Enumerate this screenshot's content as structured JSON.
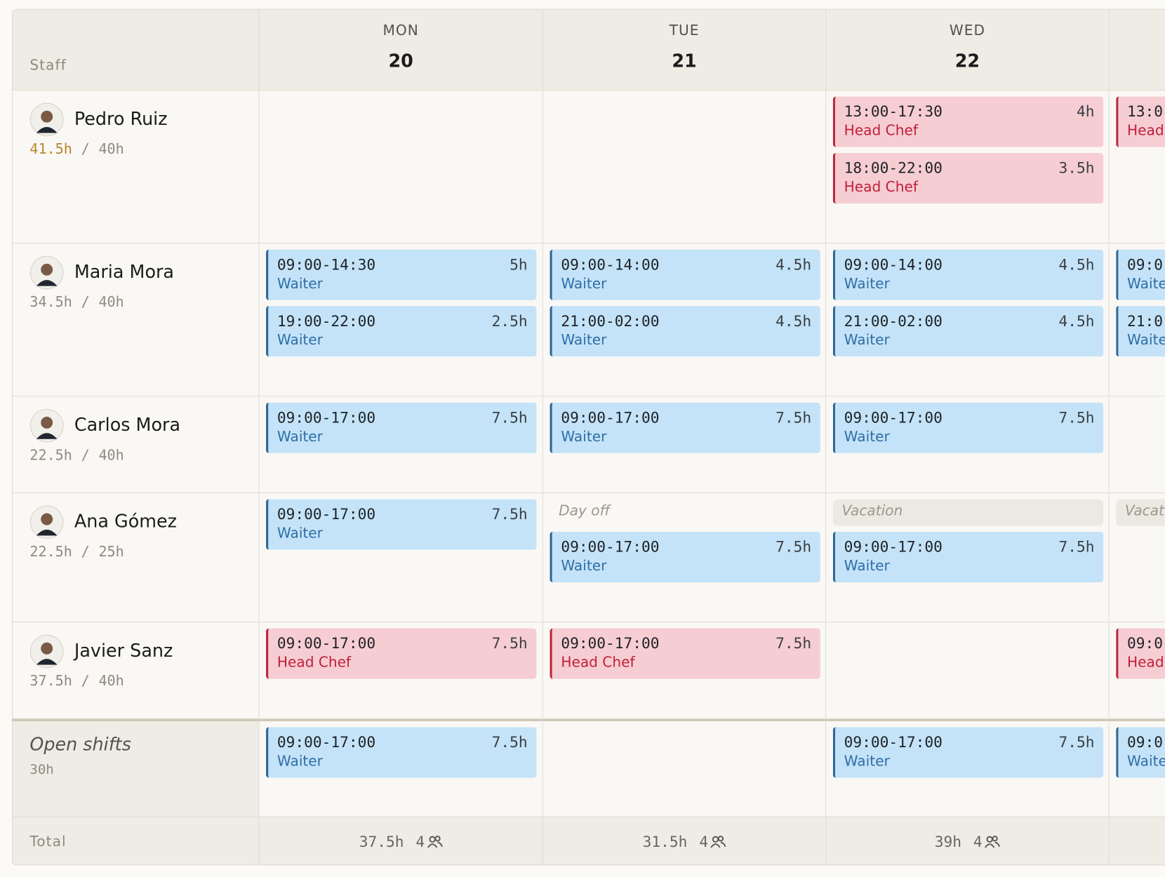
{
  "hours_separator": "/",
  "header": {
    "staff_label": "Staff",
    "days": [
      {
        "weekday": "MON",
        "date": "20"
      },
      {
        "weekday": "TUE",
        "date": "21"
      },
      {
        "weekday": "WED",
        "date": "22"
      },
      {}
    ]
  },
  "staff": [
    {
      "name": "Pedro Ruiz",
      "hours": "41.5h",
      "target": "40h",
      "over": true,
      "days": [
        [],
        [],
        [
          {
            "time": "13:00-17:30",
            "duration": "4h",
            "role": "Head Chef",
            "tone": "red"
          },
          {
            "time": "18:00-22:00",
            "duration": "3.5h",
            "role": "Head Chef",
            "tone": "red"
          }
        ],
        [
          {
            "time": "13:0",
            "role": "Head",
            "tone": "red"
          }
        ]
      ]
    },
    {
      "name": "Maria Mora",
      "hours": "34.5h",
      "target": "40h",
      "over": false,
      "days": [
        [
          {
            "time": "09:00-14:30",
            "duration": "5h",
            "role": "Waiter",
            "tone": "blue"
          },
          {
            "time": "19:00-22:00",
            "duration": "2.5h",
            "role": "Waiter",
            "tone": "blue"
          }
        ],
        [
          {
            "time": "09:00-14:00",
            "duration": "4.5h",
            "role": "Waiter",
            "tone": "blue"
          },
          {
            "time": "21:00-02:00",
            "duration": "4.5h",
            "role": "Waiter",
            "tone": "blue"
          }
        ],
        [
          {
            "time": "09:00-14:00",
            "duration": "4.5h",
            "role": "Waiter",
            "tone": "blue"
          },
          {
            "time": "21:00-02:00",
            "duration": "4.5h",
            "role": "Waiter",
            "tone": "blue"
          }
        ],
        [
          {
            "time": "09:0",
            "role": "Waite",
            "tone": "blue"
          },
          {
            "time": "21:0",
            "role": "Waite",
            "tone": "blue"
          }
        ]
      ]
    },
    {
      "name": "Carlos Mora",
      "hours": "22.5h",
      "target": "40h",
      "over": false,
      "days": [
        [
          {
            "time": "09:00-17:00",
            "duration": "7.5h",
            "role": "Waiter",
            "tone": "blue"
          }
        ],
        [
          {
            "time": "09:00-17:00",
            "duration": "7.5h",
            "role": "Waiter",
            "tone": "blue"
          }
        ],
        [
          {
            "time": "09:00-17:00",
            "duration": "7.5h",
            "role": "Waiter",
            "tone": "blue"
          }
        ],
        []
      ]
    },
    {
      "name": "Ana Gómez",
      "hours": "22.5h",
      "target": "25h",
      "over": false,
      "days": [
        [
          {
            "time": "09:00-17:00",
            "duration": "7.5h",
            "role": "Waiter",
            "tone": "blue"
          }
        ],
        [
          {
            "note": "Day off",
            "boxed": false
          },
          {
            "time": "09:00-17:00",
            "duration": "7.5h",
            "role": "Waiter",
            "tone": "blue"
          }
        ],
        [
          {
            "note": "Vacation",
            "boxed": true
          },
          {
            "time": "09:00-17:00",
            "duration": "7.5h",
            "role": "Waiter",
            "tone": "blue"
          }
        ],
        [
          {
            "note": "Vacati",
            "boxed": true
          }
        ]
      ]
    },
    {
      "name": "Javier Sanz",
      "hours": "37.5h",
      "target": "40h",
      "over": false,
      "days": [
        [
          {
            "time": "09:00-17:00",
            "duration": "7.5h",
            "role": "Head Chef",
            "tone": "red"
          }
        ],
        [
          {
            "time": "09:00-17:00",
            "duration": "7.5h",
            "role": "Head Chef",
            "tone": "red"
          }
        ],
        [],
        [
          {
            "time": "09:0",
            "role": "Head",
            "tone": "red"
          }
        ]
      ]
    }
  ],
  "open_shifts": {
    "label": "Open shifts",
    "hours": "30h",
    "days": [
      [
        {
          "time": "09:00-17:00",
          "duration": "7.5h",
          "role": "Waiter",
          "tone": "blue"
        }
      ],
      [],
      [
        {
          "time": "09:00-17:00",
          "duration": "7.5h",
          "role": "Waiter",
          "tone": "blue"
        }
      ],
      [
        {
          "time": "09:0",
          "role": "Waite",
          "tone": "blue"
        }
      ]
    ]
  },
  "totals": {
    "label": "Total",
    "days": [
      {
        "hours": "37.5h",
        "people": "4"
      },
      {
        "hours": "31.5h",
        "people": "4"
      },
      {
        "hours": "39h",
        "people": "4"
      },
      {}
    ]
  }
}
